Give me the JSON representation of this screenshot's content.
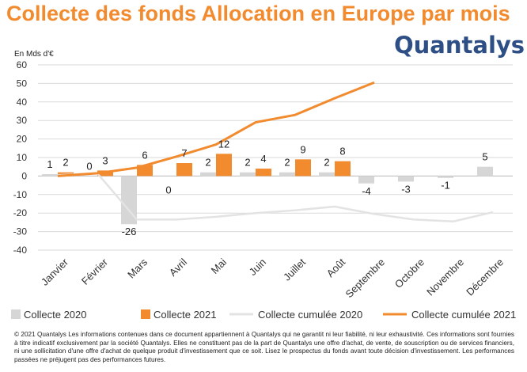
{
  "title": "Collecte des fonds Allocation en Europe par mois",
  "logo": {
    "text": "Quantalys"
  },
  "footnote": "© 2021 Quantalys Les informations contenues dans ce document appartiennent à Quantalys qui ne garantit ni leur fiabilité, ni leur exhaustivité. Ces informations sont fournies à titre indicatif exclusivement par la société Quantalys. Elles ne constituent pas de la part de Quantalys une offre d'achat, de vente, de souscription ou de services financiers, ni une sollicitation d'une offre d'achat de quelque produit d'investissement que ce soit. Lisez le prospectus du fonds avant toute décision d'investissement. Les performances passées ne préjugent pas des performances futures.",
  "chart_data": {
    "type": "bar",
    "title": "Collecte des fonds Allocation en Europe par mois",
    "ylabel": "En Mds d'€",
    "ylim": [
      -40,
      60
    ],
    "yticks": [
      60,
      50,
      40,
      30,
      20,
      10,
      0,
      -10,
      -20,
      -30,
      -40
    ],
    "grid": true,
    "legend_position": "bottom",
    "categories": [
      "Janvier",
      "Février",
      "Mars",
      "Avril",
      "Mai",
      "Juin",
      "Juillet",
      "Août",
      "Septembre",
      "Octobre",
      "Novembre",
      "Décembre"
    ],
    "series": [
      {
        "name": "Collecte 2020",
        "kind": "bar",
        "color": "#D6D6D6",
        "values": [
          1,
          0,
          -26,
          0,
          2,
          2,
          2,
          2,
          -4,
          -3,
          -1,
          5
        ],
        "labels": [
          "1",
          "0",
          "-26",
          "0",
          "2",
          "2",
          "2",
          "2",
          "-4",
          "-3",
          "-1",
          "5"
        ]
      },
      {
        "name": "Collecte 2021",
        "kind": "bar",
        "color": "#F28A2E",
        "values": [
          2,
          3,
          6,
          7,
          12,
          4,
          9,
          8,
          null,
          null,
          null,
          null
        ],
        "labels": [
          "2",
          "3",
          "6",
          "7",
          "12",
          "4",
          "9",
          "8",
          "",
          "",
          "",
          ""
        ]
      },
      {
        "name": "Collecte cumulée 2020",
        "kind": "line",
        "color": "#E3E3E3",
        "values": [
          0.5,
          1.5,
          -23.5,
          -23.5,
          -22,
          -20,
          -18.5,
          -16.5,
          -20.5,
          -23.5,
          -24.5,
          -19.5
        ]
      },
      {
        "name": "Collecte cumulée 2021",
        "kind": "line",
        "color": "#F28A2E",
        "values": [
          0,
          1.5,
          4.5,
          10.5,
          17,
          29,
          33,
          42,
          50.5,
          null,
          null,
          null
        ]
      }
    ]
  }
}
